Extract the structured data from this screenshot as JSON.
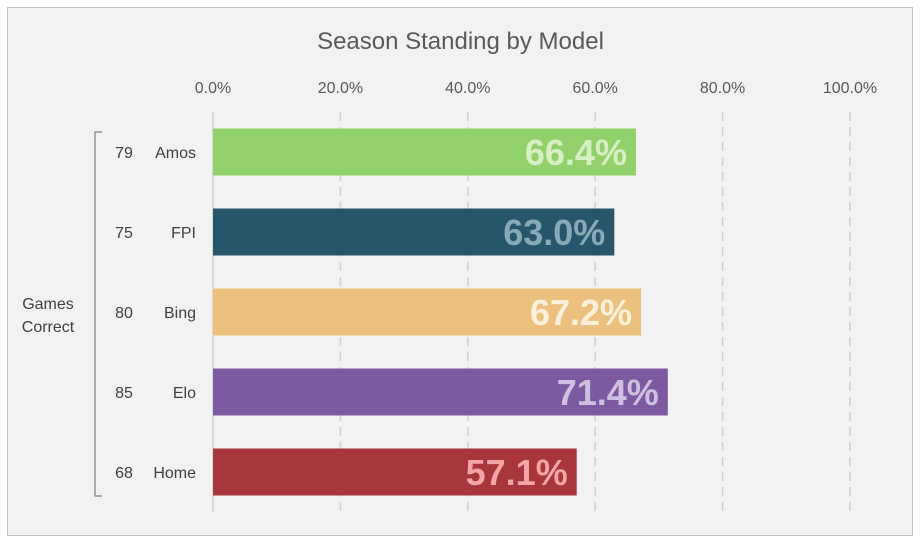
{
  "chart_data": {
    "type": "bar",
    "orientation": "horizontal",
    "title": "Season Standing by Model",
    "xlim": [
      0,
      100
    ],
    "x_ticks": [
      "0.0%",
      "20.0%",
      "40.0%",
      "60.0%",
      "80.0%",
      "100.0%"
    ],
    "x_tick_values": [
      0,
      20,
      40,
      60,
      80,
      100
    ],
    "grid": "vertical dashed",
    "axis_position": "top",
    "group_label": [
      "Games",
      "Correct"
    ],
    "categories": [
      "Amos",
      "FPI",
      "Bing",
      "Elo",
      "Home"
    ],
    "games_correct": [
      "79",
      "75",
      "80",
      "85",
      "68"
    ],
    "values": [
      66.4,
      63.0,
      67.2,
      71.4,
      57.1
    ],
    "value_labels": [
      "66.4%",
      "63.0%",
      "67.2%",
      "71.4%",
      "57.1%"
    ],
    "bar_colors": [
      "#92d06c",
      "#27556c",
      "#ecc17f",
      "#7d5a9f",
      "#a8363c"
    ],
    "label_colors": [
      "#d6f0c4",
      "#8aa9b8",
      "#fbf0dc",
      "#cfc0df",
      "#f4a5a8"
    ]
  }
}
